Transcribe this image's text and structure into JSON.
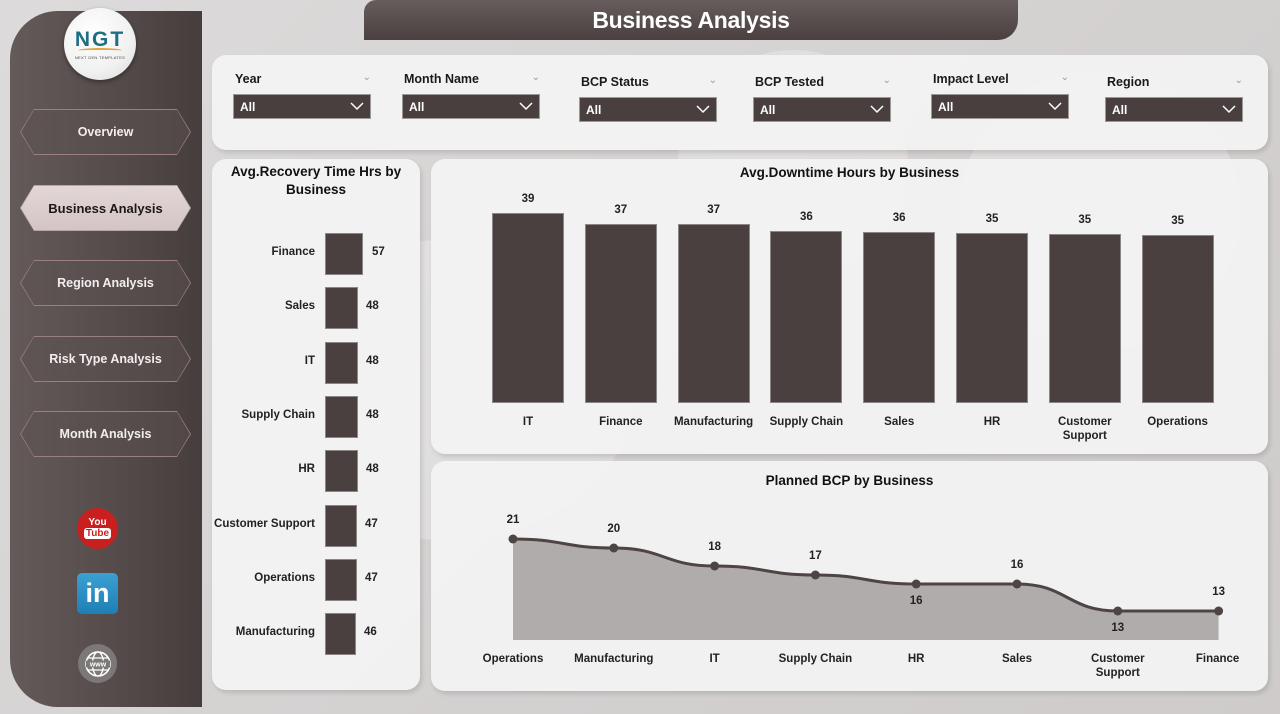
{
  "header": {
    "title": "Business Analysis"
  },
  "logo": {
    "text": "NGT",
    "subtitle": "NEXT GEN TEMPLATES"
  },
  "sidebar": {
    "items": [
      {
        "label": "Overview",
        "active": false
      },
      {
        "label": "Business Analysis",
        "active": true
      },
      {
        "label": "Region Analysis",
        "active": false
      },
      {
        "label": "Risk Type Analysis",
        "active": false
      },
      {
        "label": "Month Analysis",
        "active": false
      }
    ],
    "social": [
      {
        "name": "youtube-icon",
        "line1": "You",
        "line2": "Tube",
        "color": "#c9201f"
      },
      {
        "name": "linkedin-icon",
        "text": "in",
        "color": "#1f7fb5"
      },
      {
        "name": "website-icon",
        "text": "www",
        "color": "#7c7878"
      }
    ]
  },
  "filters": [
    {
      "label": "Year",
      "value": "All"
    },
    {
      "label": "Month Name",
      "value": "All"
    },
    {
      "label": "BCP Status",
      "value": "All"
    },
    {
      "label": "BCP Tested",
      "value": "All"
    },
    {
      "label": "Impact Level",
      "value": "All"
    },
    {
      "label": "Region",
      "value": "All"
    }
  ],
  "colors": {
    "bar": "#4a4040",
    "area": "#b1acac",
    "line": "#4e4444",
    "sidebar": "#5a5050",
    "header": "#574d4d"
  },
  "chart_data": [
    {
      "type": "bar",
      "orientation": "horizontal",
      "title": "Avg.Recovery Time Hrs by Business",
      "categories": [
        "Finance",
        "Sales",
        "IT",
        "Supply Chain",
        "HR",
        "Customer Support",
        "Operations",
        "Manufacturing"
      ],
      "values": [
        57,
        48,
        48,
        48,
        48,
        47,
        47,
        46
      ],
      "xlabel": "",
      "ylabel": "",
      "grid": false,
      "data_labels": true
    },
    {
      "type": "bar",
      "orientation": "vertical",
      "title": "Avg.Downtime Hours by Business",
      "categories": [
        "IT",
        "Finance",
        "Manufacturing",
        "Supply Chain",
        "Sales",
        "HR",
        "Customer Support",
        "Operations"
      ],
      "values": [
        39,
        37,
        37,
        36,
        36,
        35,
        35,
        35
      ],
      "xlabel": "",
      "ylabel": "",
      "grid": false,
      "data_labels": true
    },
    {
      "type": "area",
      "title": "Planned BCP by Business",
      "categories": [
        "Operations",
        "Manufacturing",
        "IT",
        "Supply Chain",
        "HR",
        "Sales",
        "Customer Support",
        "Finance"
      ],
      "values": [
        21,
        20,
        18,
        17,
        16,
        16,
        13,
        13
      ],
      "xlabel": "",
      "ylabel": "",
      "grid": false,
      "data_labels": true,
      "markers": true
    }
  ]
}
